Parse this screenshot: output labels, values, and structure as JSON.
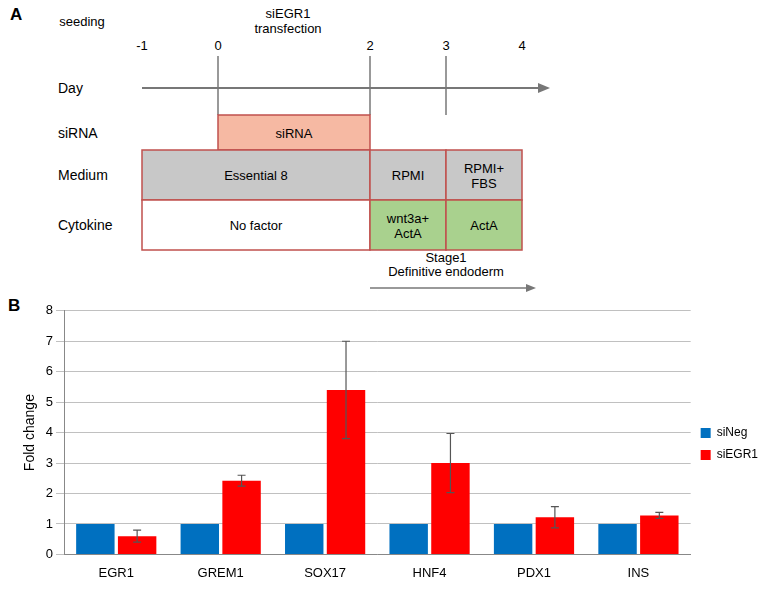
{
  "diagram": {
    "label": "A",
    "axis_label": "Day",
    "days": [
      -1,
      0,
      2,
      3,
      4
    ],
    "top_texts": [
      {
        "lines": [
          "seeding"
        ],
        "day": -1
      },
      {
        "lines": [
          "siEGR1",
          "transfection"
        ],
        "day": 0
      }
    ],
    "rows": [
      {
        "label": "siRNA",
        "boxes": [
          {
            "lines": [
              "siRNA"
            ],
            "from": 0,
            "to": 2,
            "color": "#f6b9a3"
          }
        ]
      },
      {
        "label": "Medium",
        "boxes": [
          {
            "lines": [
              "Essential 8"
            ],
            "from": -1,
            "to": 2,
            "color": "#c8c8c8"
          },
          {
            "lines": [
              "RPMI"
            ],
            "from": 2,
            "to": 3,
            "color": "#c8c8c8"
          },
          {
            "lines": [
              "RPMI+",
              "FBS"
            ],
            "from": 3,
            "to": 4,
            "color": "#c8c8c8"
          }
        ]
      },
      {
        "label": "Cytokine",
        "boxes": [
          {
            "lines": [
              "No factor"
            ],
            "from": -1,
            "to": 2,
            "color": "#ffffff"
          },
          {
            "lines": [
              "wnt3a+",
              "ActA"
            ],
            "from": 2,
            "to": 3,
            "color": "#a9d18e"
          },
          {
            "lines": [
              "ActA"
            ],
            "from": 3,
            "to": 4,
            "color": "#a9d18e"
          }
        ]
      }
    ],
    "stage": {
      "lines": [
        "Stage1",
        "Definitive endoderm"
      ],
      "from": 2,
      "to": 4
    }
  },
  "chart_data": {
    "label": "B",
    "type": "bar",
    "y_label": "Fold change",
    "categories": [
      "EGR1",
      "GREM1",
      "SOX17",
      "HNF4",
      "PDX1",
      "INS"
    ],
    "series": [
      {
        "name": "siNeg",
        "color": "#0070c0",
        "values": [
          1,
          1,
          1,
          1,
          1,
          1
        ]
      },
      {
        "name": "siEGR1",
        "color": "#ff0000",
        "values": [
          0.6,
          2.42,
          5.4,
          3.0,
          1.22,
          1.28
        ],
        "errors": [
          0.2,
          0.18,
          1.6,
          0.97,
          0.35,
          0.1
        ]
      }
    ],
    "ylim": [
      0,
      8
    ],
    "yticks": [
      0,
      1,
      2,
      3,
      4,
      5,
      6,
      7,
      8
    ],
    "grid": true,
    "legend": "right"
  }
}
